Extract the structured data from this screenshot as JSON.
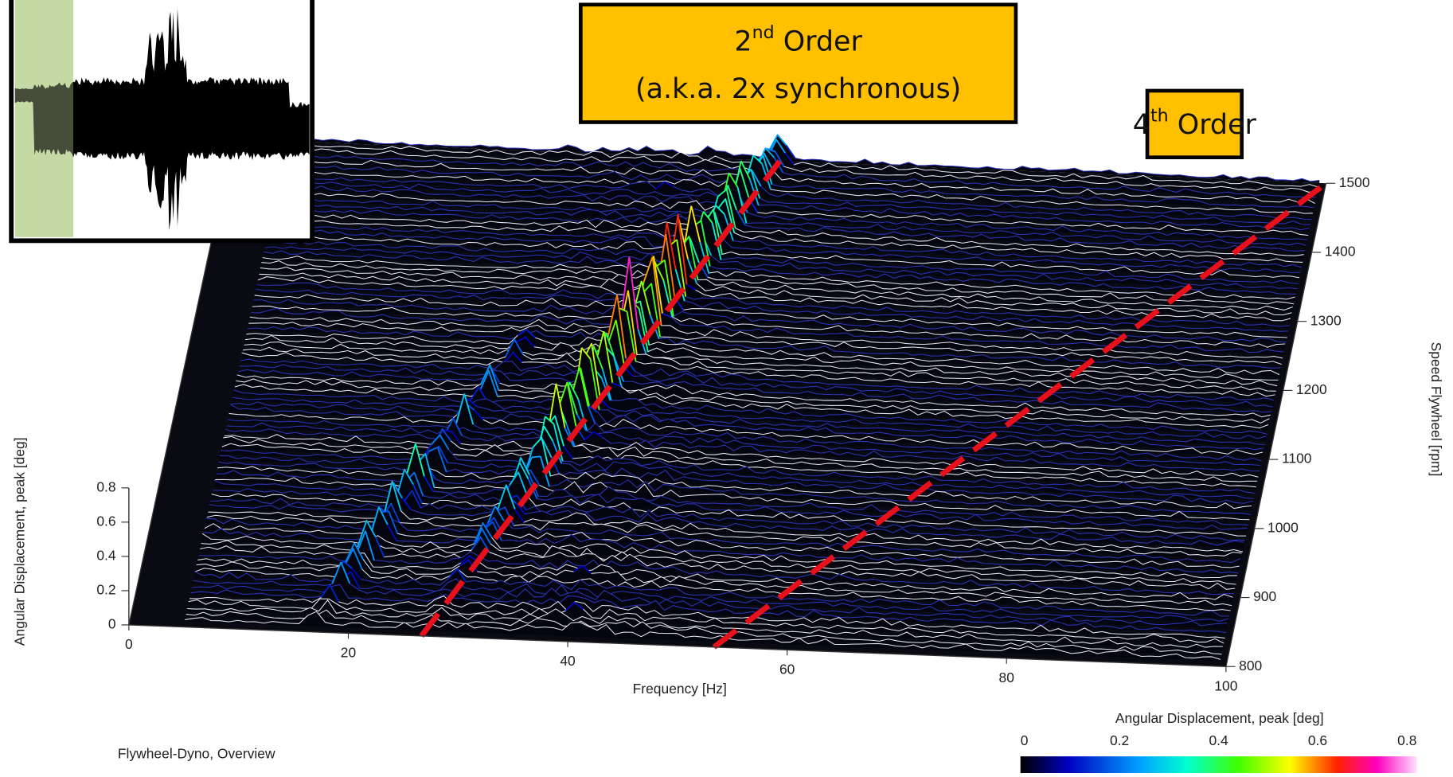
{
  "chart_data": {
    "type": "waterfall3d",
    "title": "Flywheel-Dyno, Overview",
    "xlabel": "Frequency [Hz]",
    "xlim": [
      0,
      100
    ],
    "xticks": [
      0,
      20,
      40,
      60,
      80,
      100
    ],
    "ylabel": "Speed Flywheel [rpm]",
    "ylim": [
      800,
      1500
    ],
    "yticks": [
      800,
      900,
      1000,
      1100,
      1200,
      1300,
      1400,
      1500
    ],
    "zlabel": "Angular Displacement, peak [deg]",
    "zlim": [
      0,
      0.8
    ],
    "zticks": [
      0,
      0.2,
      0.4,
      0.6,
      0.8
    ],
    "colorbar": {
      "label": "Angular Displacement, peak [deg]",
      "lim": [
        0,
        0.8
      ],
      "ticks": [
        0,
        0.2,
        0.4,
        0.6,
        0.8
      ]
    },
    "annotations": [
      {
        "order": 2,
        "suffix": "nd",
        "text": " Order",
        "line2": "(a.k.a. 2x synchronous)"
      },
      {
        "order": 4,
        "suffix": "th",
        "text": " Order"
      }
    ]
  }
}
